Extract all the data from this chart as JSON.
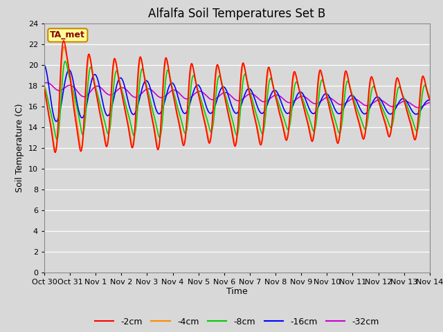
{
  "title": "Alfalfa Soil Temperatures Set B",
  "xlabel": "Time",
  "ylabel": "Soil Temperature (C)",
  "ylim": [
    0,
    24
  ],
  "yticks": [
    0,
    2,
    4,
    6,
    8,
    10,
    12,
    14,
    16,
    18,
    20,
    22,
    24
  ],
  "xtick_labels": [
    "Oct 30",
    "Oct 31",
    "Nov 1",
    "Nov 2",
    "Nov 3",
    "Nov 4",
    "Nov 5",
    "Nov 6",
    "Nov 7",
    "Nov 8",
    "Nov 9",
    "Nov 10",
    "Nov 11",
    "Nov 12",
    "Nov 13",
    "Nov 14"
  ],
  "series_colors": [
    "#ff0000",
    "#ff8800",
    "#00cc00",
    "#0000ff",
    "#cc00cc"
  ],
  "series_labels": [
    "-2cm",
    "-4cm",
    "-8cm",
    "-16cm",
    "-32cm"
  ],
  "bg_color": "#d8d8d8",
  "annotation_text": "TA_met",
  "annotation_bg": "#ffff99",
  "annotation_border": "#cc8800",
  "annotation_text_color": "#880000",
  "linewidth": 1.2,
  "title_fontsize": 12,
  "label_fontsize": 9,
  "tick_fontsize": 8,
  "legend_fontsize": 9
}
